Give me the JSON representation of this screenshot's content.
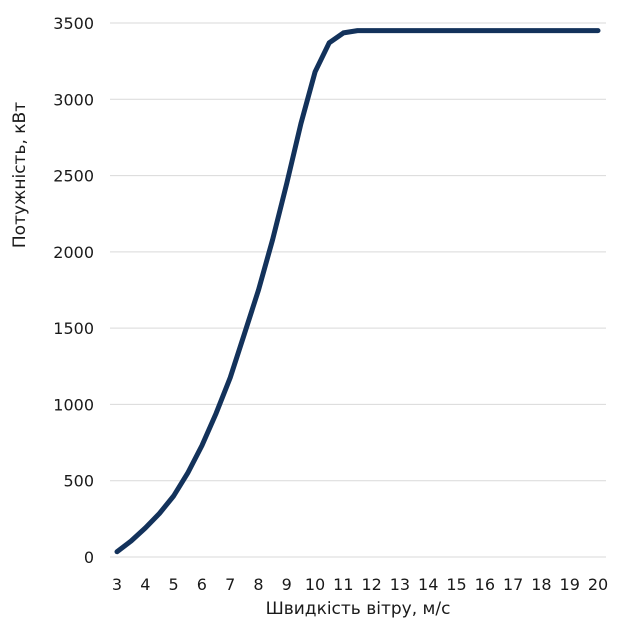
{
  "chart_data": {
    "type": "line",
    "xlabel": "Швидкість вітру, м/с",
    "ylabel": "Потужність, кВт",
    "x": [
      3,
      3.5,
      4,
      4.5,
      5,
      5.5,
      6,
      6.5,
      7,
      7.5,
      8,
      8.5,
      9,
      9.5,
      10,
      10.5,
      11,
      11.5,
      12,
      13,
      14,
      15,
      16,
      17,
      18,
      19,
      20
    ],
    "series": [
      {
        "values": [
          35,
          105,
          190,
          285,
          400,
          550,
          730,
          940,
          1175,
          1460,
          1750,
          2080,
          2450,
          2840,
          3180,
          3370,
          3435,
          3450,
          3450,
          3450,
          3450,
          3450,
          3450,
          3450,
          3450,
          3450,
          3450
        ],
        "color": "#13325b"
      }
    ],
    "xticks": [
      3,
      4,
      5,
      6,
      7,
      8,
      9,
      10,
      11,
      12,
      13,
      14,
      15,
      16,
      17,
      18,
      19,
      20
    ],
    "yticks": [
      0,
      500,
      1000,
      1500,
      2000,
      2500,
      3000,
      3500
    ],
    "xlim": [
      3,
      20
    ],
    "ylim": [
      0,
      3500
    ],
    "grid": "horizontal",
    "gridColor": "#d9d9d9"
  }
}
